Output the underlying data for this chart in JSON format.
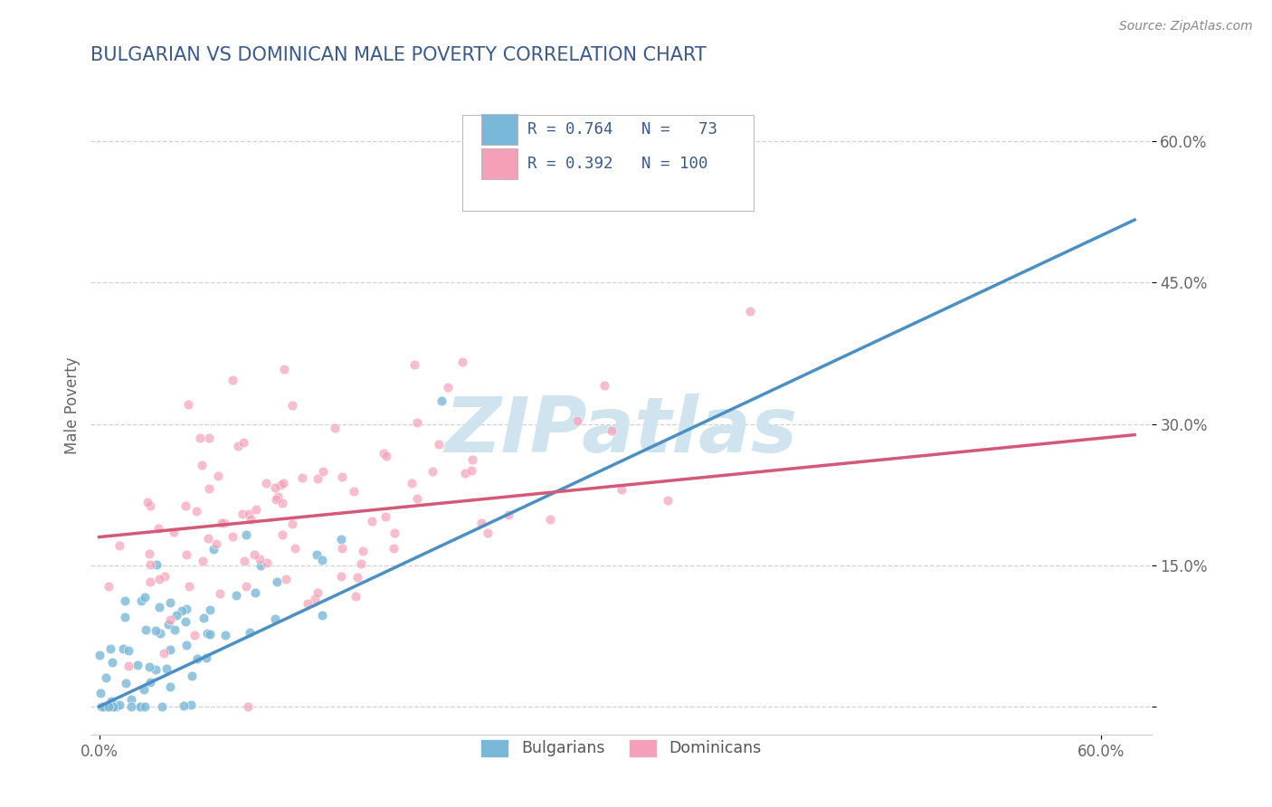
{
  "title": "BULGARIAN VS DOMINICAN MALE POVERTY CORRELATION CHART",
  "source": "Source: ZipAtlas.com",
  "ylabel": "Male Poverty",
  "yticks": [
    0.0,
    0.15,
    0.3,
    0.45,
    0.6
  ],
  "ytick_labels": [
    "",
    "15.0%",
    "30.0%",
    "45.0%",
    "60.0%"
  ],
  "xlim": [
    -0.005,
    0.63
  ],
  "ylim": [
    -0.03,
    0.67
  ],
  "bg_color": "#ffffff",
  "grid_color": "#cccccc",
  "blue_color": "#7ab8d9",
  "blue_line_color": "#4a90c4",
  "pink_color": "#f4a0b8",
  "pink_line_color": "#d45878",
  "blue_r": 0.764,
  "blue_n": 73,
  "pink_r": 0.392,
  "pink_n": 100,
  "title_color": "#3a5a8a",
  "legend_text_color": "#3a5a8a",
  "source_color": "#888888",
  "watermark_color": "#d0e4f0",
  "blue_trend_start": 0.0,
  "blue_trend_end": 0.5,
  "pink_trend_start": 0.18,
  "pink_trend_end": 0.285
}
